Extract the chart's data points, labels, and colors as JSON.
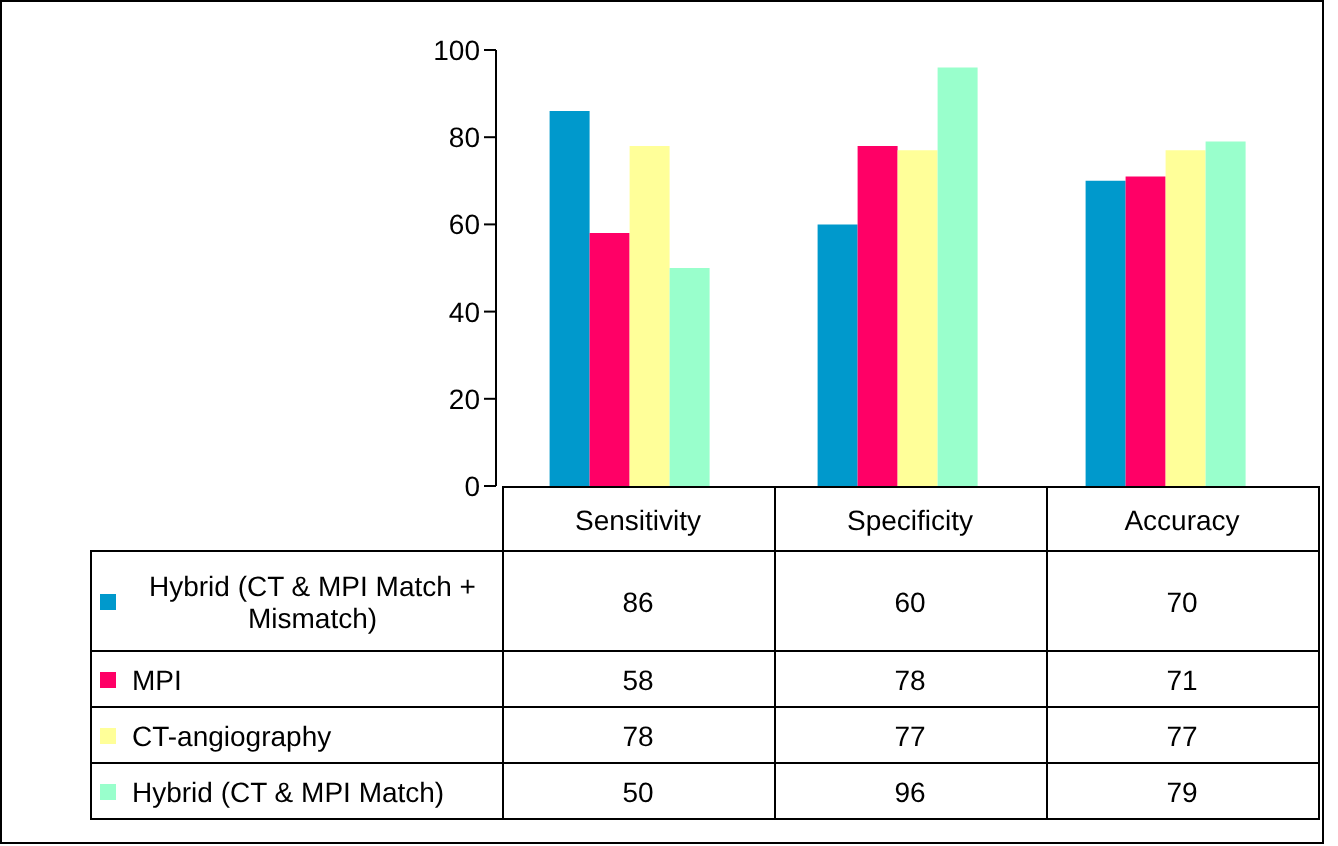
{
  "chart_data": {
    "type": "bar",
    "categories": [
      "Sensitivity",
      "Specificity",
      "Accuracy"
    ],
    "series": [
      {
        "name": "Hybrid (CT & MPI Match + Mismatch)",
        "color": "#0099cc",
        "values": [
          86,
          60,
          70
        ]
      },
      {
        "name": "MPI",
        "color": "#ff0066",
        "values": [
          58,
          78,
          71
        ]
      },
      {
        "name": "CT-angiography",
        "color": "#ffff99",
        "values": [
          78,
          77,
          77
        ]
      },
      {
        "name": "Hybrid (CT & MPI Match)",
        "color": "#99ffcc",
        "values": [
          50,
          96,
          79
        ]
      }
    ],
    "ylim": [
      0,
      100
    ],
    "yticks": [
      0,
      20,
      40,
      60,
      80,
      100
    ],
    "legend": "bottom left",
    "data_labels": true
  }
}
